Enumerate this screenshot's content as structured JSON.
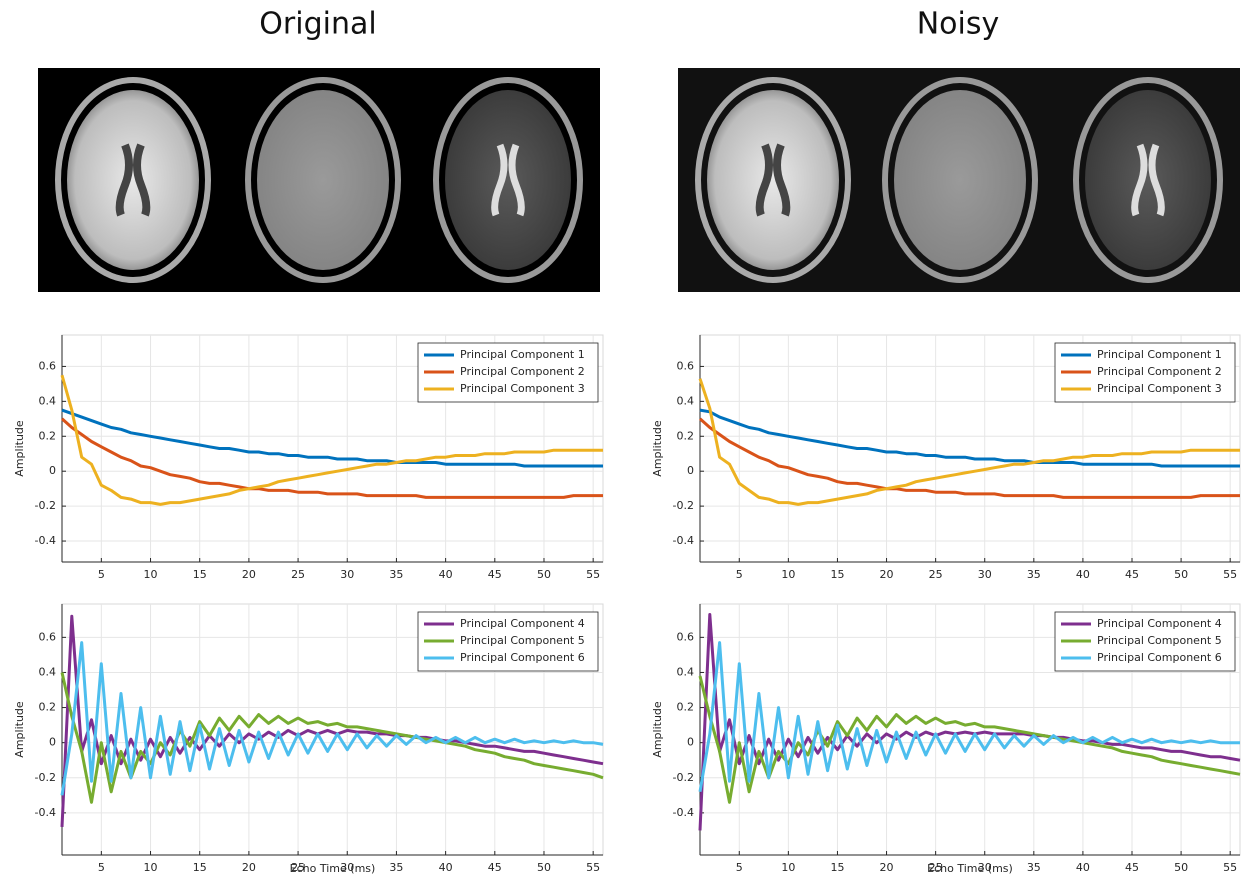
{
  "titles": [
    "Original",
    "Noisy"
  ],
  "chart_data": [
    {
      "type": "line",
      "ylabel": "Amplitude",
      "x": [
        1,
        2,
        3,
        4,
        5,
        6,
        7,
        8,
        9,
        10,
        11,
        12,
        13,
        14,
        15,
        16,
        17,
        18,
        19,
        20,
        21,
        22,
        23,
        24,
        25,
        26,
        27,
        28,
        29,
        30,
        31,
        32,
        33,
        34,
        35,
        36,
        37,
        38,
        39,
        40,
        41,
        42,
        43,
        44,
        45,
        46,
        47,
        48,
        49,
        50,
        51,
        52,
        53,
        54,
        55,
        56
      ],
      "xlim": [
        1,
        56
      ],
      "xticks": [
        5,
        10,
        15,
        20,
        25,
        30,
        35,
        40,
        45,
        50,
        55
      ],
      "ylim": [
        -0.52,
        0.78
      ],
      "yticks": [
        -0.4,
        -0.2,
        0,
        0.2,
        0.4,
        0.6
      ],
      "grid": true,
      "legend": "top-right",
      "series": [
        {
          "name": "Principal Component 1",
          "color": "#0072bd",
          "values": [
            0.35,
            0.33,
            0.31,
            0.29,
            0.27,
            0.25,
            0.24,
            0.22,
            0.21,
            0.2,
            0.19,
            0.18,
            0.17,
            0.16,
            0.15,
            0.14,
            0.13,
            0.13,
            0.12,
            0.11,
            0.11,
            0.1,
            0.1,
            0.09,
            0.09,
            0.08,
            0.08,
            0.08,
            0.07,
            0.07,
            0.07,
            0.06,
            0.06,
            0.06,
            0.05,
            0.05,
            0.05,
            0.05,
            0.05,
            0.04,
            0.04,
            0.04,
            0.04,
            0.04,
            0.04,
            0.04,
            0.04,
            0.03,
            0.03,
            0.03,
            0.03,
            0.03,
            0.03,
            0.03,
            0.03,
            0.03
          ]
        },
        {
          "name": "Principal Component 2",
          "color": "#d95319",
          "values": [
            0.3,
            0.25,
            0.21,
            0.17,
            0.14,
            0.11,
            0.08,
            0.06,
            0.03,
            0.02,
            0.0,
            -0.02,
            -0.03,
            -0.04,
            -0.06,
            -0.07,
            -0.07,
            -0.08,
            -0.09,
            -0.1,
            -0.1,
            -0.11,
            -0.11,
            -0.11,
            -0.12,
            -0.12,
            -0.12,
            -0.13,
            -0.13,
            -0.13,
            -0.13,
            -0.14,
            -0.14,
            -0.14,
            -0.14,
            -0.14,
            -0.14,
            -0.15,
            -0.15,
            -0.15,
            -0.15,
            -0.15,
            -0.15,
            -0.15,
            -0.15,
            -0.15,
            -0.15,
            -0.15,
            -0.15,
            -0.15,
            -0.15,
            -0.15,
            -0.14,
            -0.14,
            -0.14,
            -0.14
          ]
        },
        {
          "name": "Principal Component 3",
          "color": "#edb120",
          "values": [
            0.55,
            0.35,
            0.08,
            0.04,
            -0.08,
            -0.11,
            -0.15,
            -0.16,
            -0.18,
            -0.18,
            -0.19,
            -0.18,
            -0.18,
            -0.17,
            -0.16,
            -0.15,
            -0.14,
            -0.13,
            -0.11,
            -0.1,
            -0.09,
            -0.08,
            -0.06,
            -0.05,
            -0.04,
            -0.03,
            -0.02,
            -0.01,
            0.0,
            0.01,
            0.02,
            0.03,
            0.04,
            0.04,
            0.05,
            0.06,
            0.06,
            0.07,
            0.08,
            0.08,
            0.09,
            0.09,
            0.09,
            0.1,
            0.1,
            0.1,
            0.11,
            0.11,
            0.11,
            0.11,
            0.12,
            0.12,
            0.12,
            0.12,
            0.12,
            0.12
          ]
        }
      ]
    },
    {
      "type": "line",
      "ylabel": "Amplitude",
      "xlabel": "Echo Time (ms)",
      "x": [
        1,
        2,
        3,
        4,
        5,
        6,
        7,
        8,
        9,
        10,
        11,
        12,
        13,
        14,
        15,
        16,
        17,
        18,
        19,
        20,
        21,
        22,
        23,
        24,
        25,
        26,
        27,
        28,
        29,
        30,
        31,
        32,
        33,
        34,
        35,
        36,
        37,
        38,
        39,
        40,
        41,
        42,
        43,
        44,
        45,
        46,
        47,
        48,
        49,
        50,
        51,
        52,
        53,
        54,
        55,
        56
      ],
      "xlim": [
        1,
        56
      ],
      "xticks": [
        5,
        10,
        15,
        20,
        25,
        30,
        35,
        40,
        45,
        50,
        55
      ],
      "ylim": [
        -0.64,
        0.79
      ],
      "yticks": [
        -0.4,
        -0.2,
        0,
        0.2,
        0.4,
        0.6
      ],
      "grid": true,
      "legend": "top-right",
      "series": [
        {
          "name": "Principal Component 4",
          "color": "#7e2f8e",
          "values": [
            -0.48,
            0.72,
            -0.05,
            0.13,
            -0.12,
            0.04,
            -0.12,
            0.02,
            -0.1,
            0.02,
            -0.08,
            0.03,
            -0.06,
            0.03,
            -0.04,
            0.04,
            -0.02,
            0.05,
            0.0,
            0.05,
            0.02,
            0.06,
            0.03,
            0.07,
            0.04,
            0.07,
            0.05,
            0.07,
            0.05,
            0.07,
            0.06,
            0.06,
            0.05,
            0.05,
            0.04,
            0.04,
            0.03,
            0.03,
            0.02,
            0.01,
            0.01,
            0.0,
            -0.01,
            -0.02,
            -0.02,
            -0.03,
            -0.04,
            -0.05,
            -0.05,
            -0.06,
            -0.07,
            -0.08,
            -0.09,
            -0.1,
            -0.11,
            -0.12
          ]
        },
        {
          "name": "Principal Component 5",
          "color": "#77ac30",
          "values": [
            0.4,
            0.15,
            -0.05,
            -0.34,
            0.0,
            -0.28,
            -0.05,
            -0.2,
            -0.05,
            -0.12,
            0.0,
            -0.07,
            0.07,
            -0.02,
            0.12,
            0.04,
            0.14,
            0.07,
            0.15,
            0.09,
            0.16,
            0.11,
            0.15,
            0.11,
            0.14,
            0.11,
            0.12,
            0.1,
            0.11,
            0.09,
            0.09,
            0.08,
            0.07,
            0.06,
            0.05,
            0.04,
            0.03,
            0.02,
            0.01,
            0.0,
            -0.01,
            -0.02,
            -0.04,
            -0.05,
            -0.06,
            -0.08,
            -0.09,
            -0.1,
            -0.12,
            -0.13,
            -0.14,
            -0.15,
            -0.16,
            -0.17,
            -0.18,
            -0.2
          ]
        },
        {
          "name": "Principal Component 6",
          "color": "#4dbeee",
          "values": [
            -0.3,
            0.05,
            0.57,
            -0.22,
            0.45,
            -0.22,
            0.28,
            -0.2,
            0.2,
            -0.2,
            0.15,
            -0.18,
            0.12,
            -0.16,
            0.1,
            -0.15,
            0.08,
            -0.13,
            0.07,
            -0.11,
            0.06,
            -0.09,
            0.06,
            -0.07,
            0.05,
            -0.06,
            0.05,
            -0.05,
            0.05,
            -0.04,
            0.05,
            -0.03,
            0.04,
            -0.02,
            0.04,
            -0.01,
            0.04,
            0.0,
            0.03,
            0.0,
            0.03,
            0.0,
            0.03,
            0.0,
            0.02,
            0.0,
            0.02,
            0.0,
            0.01,
            0.0,
            0.01,
            0.0,
            0.01,
            0.0,
            0.0,
            -0.01
          ]
        }
      ]
    },
    {
      "type": "line",
      "ylabel": "Amplitude",
      "x": [
        1,
        2,
        3,
        4,
        5,
        6,
        7,
        8,
        9,
        10,
        11,
        12,
        13,
        14,
        15,
        16,
        17,
        18,
        19,
        20,
        21,
        22,
        23,
        24,
        25,
        26,
        27,
        28,
        29,
        30,
        31,
        32,
        33,
        34,
        35,
        36,
        37,
        38,
        39,
        40,
        41,
        42,
        43,
        44,
        45,
        46,
        47,
        48,
        49,
        50,
        51,
        52,
        53,
        54,
        55,
        56
      ],
      "xlim": [
        1,
        56
      ],
      "xticks": [
        5,
        10,
        15,
        20,
        25,
        30,
        35,
        40,
        45,
        50,
        55
      ],
      "ylim": [
        -0.52,
        0.78
      ],
      "yticks": [
        -0.4,
        -0.2,
        0,
        0.2,
        0.4,
        0.6
      ],
      "grid": true,
      "legend": "top-right",
      "series": [
        {
          "name": "Principal Component 1",
          "color": "#0072bd",
          "values": [
            0.35,
            0.34,
            0.31,
            0.29,
            0.27,
            0.25,
            0.24,
            0.22,
            0.21,
            0.2,
            0.19,
            0.18,
            0.17,
            0.16,
            0.15,
            0.14,
            0.13,
            0.13,
            0.12,
            0.11,
            0.11,
            0.1,
            0.1,
            0.09,
            0.09,
            0.08,
            0.08,
            0.08,
            0.07,
            0.07,
            0.07,
            0.06,
            0.06,
            0.06,
            0.05,
            0.05,
            0.05,
            0.05,
            0.05,
            0.04,
            0.04,
            0.04,
            0.04,
            0.04,
            0.04,
            0.04,
            0.04,
            0.03,
            0.03,
            0.03,
            0.03,
            0.03,
            0.03,
            0.03,
            0.03,
            0.03
          ]
        },
        {
          "name": "Principal Component 2",
          "color": "#d95319",
          "values": [
            0.3,
            0.25,
            0.21,
            0.17,
            0.14,
            0.11,
            0.08,
            0.06,
            0.03,
            0.02,
            0.0,
            -0.02,
            -0.03,
            -0.04,
            -0.06,
            -0.07,
            -0.07,
            -0.08,
            -0.09,
            -0.1,
            -0.1,
            -0.11,
            -0.11,
            -0.11,
            -0.12,
            -0.12,
            -0.12,
            -0.13,
            -0.13,
            -0.13,
            -0.13,
            -0.14,
            -0.14,
            -0.14,
            -0.14,
            -0.14,
            -0.14,
            -0.15,
            -0.15,
            -0.15,
            -0.15,
            -0.15,
            -0.15,
            -0.15,
            -0.15,
            -0.15,
            -0.15,
            -0.15,
            -0.15,
            -0.15,
            -0.15,
            -0.14,
            -0.14,
            -0.14,
            -0.14,
            -0.14
          ]
        },
        {
          "name": "Principal Component 3",
          "color": "#edb120",
          "values": [
            0.53,
            0.36,
            0.08,
            0.04,
            -0.07,
            -0.11,
            -0.15,
            -0.16,
            -0.18,
            -0.18,
            -0.19,
            -0.18,
            -0.18,
            -0.17,
            -0.16,
            -0.15,
            -0.14,
            -0.13,
            -0.11,
            -0.1,
            -0.09,
            -0.08,
            -0.06,
            -0.05,
            -0.04,
            -0.03,
            -0.02,
            -0.01,
            0.0,
            0.01,
            0.02,
            0.03,
            0.04,
            0.04,
            0.05,
            0.06,
            0.06,
            0.07,
            0.08,
            0.08,
            0.09,
            0.09,
            0.09,
            0.1,
            0.1,
            0.1,
            0.11,
            0.11,
            0.11,
            0.11,
            0.12,
            0.12,
            0.12,
            0.12,
            0.12,
            0.12
          ]
        }
      ]
    },
    {
      "type": "line",
      "ylabel": "Amplitude",
      "xlabel": "Echo Time (ms)",
      "x": [
        1,
        2,
        3,
        4,
        5,
        6,
        7,
        8,
        9,
        10,
        11,
        12,
        13,
        14,
        15,
        16,
        17,
        18,
        19,
        20,
        21,
        22,
        23,
        24,
        25,
        26,
        27,
        28,
        29,
        30,
        31,
        32,
        33,
        34,
        35,
        36,
        37,
        38,
        39,
        40,
        41,
        42,
        43,
        44,
        45,
        46,
        47,
        48,
        49,
        50,
        51,
        52,
        53,
        54,
        55,
        56
      ],
      "xlim": [
        1,
        56
      ],
      "xticks": [
        5,
        10,
        15,
        20,
        25,
        30,
        35,
        40,
        45,
        50,
        55
      ],
      "ylim": [
        -0.64,
        0.79
      ],
      "yticks": [
        -0.4,
        -0.2,
        0,
        0.2,
        0.4,
        0.6
      ],
      "grid": true,
      "legend": "top-right",
      "series": [
        {
          "name": "Principal Component 4",
          "color": "#7e2f8e",
          "values": [
            -0.5,
            0.73,
            -0.05,
            0.13,
            -0.12,
            0.04,
            -0.12,
            0.02,
            -0.1,
            0.02,
            -0.08,
            0.03,
            -0.06,
            0.03,
            -0.04,
            0.04,
            -0.02,
            0.05,
            0.0,
            0.05,
            0.02,
            0.06,
            0.03,
            0.06,
            0.04,
            0.06,
            0.05,
            0.06,
            0.05,
            0.06,
            0.05,
            0.05,
            0.05,
            0.05,
            0.04,
            0.04,
            0.03,
            0.03,
            0.02,
            0.01,
            0.01,
            0.0,
            -0.01,
            -0.01,
            -0.02,
            -0.03,
            -0.03,
            -0.04,
            -0.05,
            -0.05,
            -0.06,
            -0.07,
            -0.08,
            -0.08,
            -0.09,
            -0.1
          ]
        },
        {
          "name": "Principal Component 5",
          "color": "#77ac30",
          "values": [
            0.38,
            0.15,
            -0.05,
            -0.34,
            0.0,
            -0.28,
            -0.05,
            -0.2,
            -0.05,
            -0.12,
            0.0,
            -0.07,
            0.07,
            -0.02,
            0.12,
            0.04,
            0.14,
            0.07,
            0.15,
            0.09,
            0.16,
            0.11,
            0.15,
            0.11,
            0.14,
            0.11,
            0.12,
            0.1,
            0.11,
            0.09,
            0.09,
            0.08,
            0.07,
            0.06,
            0.05,
            0.04,
            0.03,
            0.02,
            0.01,
            0.0,
            -0.01,
            -0.02,
            -0.03,
            -0.05,
            -0.06,
            -0.07,
            -0.08,
            -0.1,
            -0.11,
            -0.12,
            -0.13,
            -0.14,
            -0.15,
            -0.16,
            -0.17,
            -0.18
          ]
        },
        {
          "name": "Principal Component 6",
          "color": "#4dbeee",
          "values": [
            -0.28,
            0.05,
            0.57,
            -0.22,
            0.45,
            -0.22,
            0.28,
            -0.2,
            0.2,
            -0.2,
            0.15,
            -0.18,
            0.12,
            -0.16,
            0.1,
            -0.15,
            0.08,
            -0.13,
            0.07,
            -0.11,
            0.06,
            -0.09,
            0.06,
            -0.07,
            0.05,
            -0.06,
            0.05,
            -0.05,
            0.05,
            -0.04,
            0.05,
            -0.03,
            0.04,
            -0.02,
            0.04,
            -0.01,
            0.04,
            0.0,
            0.03,
            0.0,
            0.03,
            0.0,
            0.03,
            0.0,
            0.02,
            0.0,
            0.02,
            0.0,
            0.01,
            0.0,
            0.01,
            0.0,
            0.01,
            0.0,
            0.0,
            0.0
          ]
        }
      ]
    }
  ]
}
